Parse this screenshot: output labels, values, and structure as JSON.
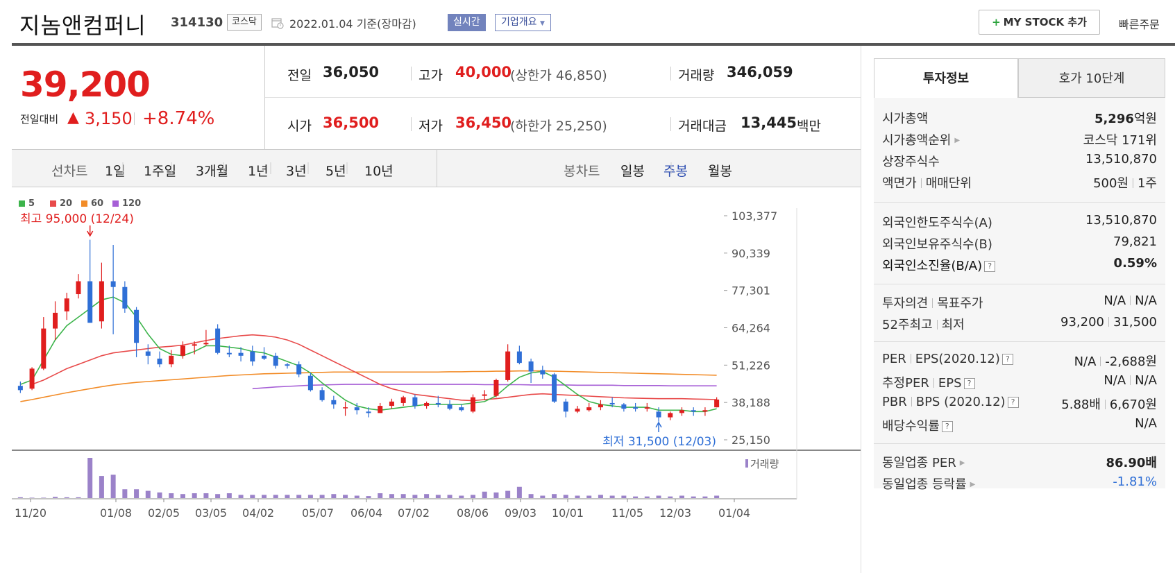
{
  "header": {
    "company_name": "지놈앤컴퍼니",
    "code": "314130",
    "market": "코스닥",
    "date_basis": "2022.01.04 기준(장마감)",
    "realtime_label": "실시간",
    "company_overview_label": "기업개요",
    "mystock_label": "MY STOCK 추가",
    "quick_order_label": "빠른주문"
  },
  "price": {
    "current": "39,200",
    "change_label": "전일대비",
    "change_arrow": "▲",
    "change_value": "3,150",
    "change_pct": "+8.74%"
  },
  "quote": {
    "prev_label": "전일",
    "prev_value": "36,050",
    "high_label": "고가",
    "high_value": "40,000",
    "upper_limit": "(상한가 46,850)",
    "volume_label": "거래량",
    "volume_value": "346,059",
    "open_label": "시가",
    "open_value": "36,500",
    "low_label": "저가",
    "low_value": "36,450",
    "lower_limit": "(하한가 25,250)",
    "amount_label": "거래대금",
    "amount_value": "13,445",
    "amount_unit": "백만"
  },
  "period_bar": {
    "line_label": "선차트",
    "line_periods": [
      "1일",
      "1주일",
      "3개월",
      "1년",
      "3년",
      "5년",
      "10년"
    ],
    "candle_label": "봉차트",
    "candle_periods": [
      "일봉",
      "주봉",
      "월봉"
    ],
    "candle_active": "주봉"
  },
  "chart": {
    "legend": [
      {
        "label": "5",
        "color": "#3cb44b"
      },
      {
        "label": "20",
        "color": "#e84a4a"
      },
      {
        "label": "60",
        "color": "#f28c28"
      },
      {
        "label": "120",
        "color": "#a65fd6"
      }
    ],
    "high_annotation": "최고 95,000 (12/24)",
    "low_annotation": "최저 31,500 (12/03)",
    "y_ticks": [
      "103,377",
      "90,339",
      "77,301",
      "64,264",
      "51,226",
      "38,188",
      "25,150"
    ],
    "x_ticks": [
      "11/20",
      "01/08",
      "02/05",
      "03/05",
      "04/02",
      "05/07",
      "06/04",
      "07/02",
      "08/06",
      "09/03",
      "10/01",
      "11/05",
      "12/03",
      "01/04"
    ],
    "volume_legend": "거래량"
  },
  "chart_data": {
    "type": "candlestick",
    "title": "",
    "ylim": [
      25150,
      103377
    ],
    "candles": [
      [
        44000,
        45500,
        41500,
        42500
      ],
      [
        43000,
        50500,
        42500,
        50000
      ],
      [
        50000,
        68000,
        49500,
        64000
      ],
      [
        64000,
        73500,
        60000,
        69500
      ],
      [
        70000,
        76500,
        67000,
        74500
      ],
      [
        76000,
        83000,
        74500,
        80500
      ],
      [
        80500,
        95000,
        66000,
        66000
      ],
      [
        66500,
        87000,
        64000,
        80500
      ],
      [
        80500,
        93200,
        62000,
        78500
      ],
      [
        78500,
        80500,
        69500,
        71000
      ],
      [
        70500,
        71500,
        54000,
        59000
      ],
      [
        56000,
        58500,
        51500,
        54500
      ],
      [
        53500,
        56000,
        50500,
        51500
      ],
      [
        51500,
        56500,
        50500,
        54500
      ],
      [
        54500,
        59500,
        53500,
        58000
      ],
      [
        58000,
        59500,
        55000,
        58500
      ],
      [
        58500,
        63500,
        58000,
        59000
      ],
      [
        64000,
        65500,
        55000,
        55500
      ],
      [
        55500,
        58000,
        54000,
        55000
      ],
      [
        55500,
        57500,
        52500,
        54500
      ],
      [
        56000,
        58000,
        51000,
        52500
      ],
      [
        54500,
        57500,
        53000,
        53500
      ],
      [
        54500,
        55500,
        50000,
        51000
      ],
      [
        51500,
        52000,
        50000,
        51000
      ],
      [
        51500,
        52500,
        47000,
        48000
      ],
      [
        47500,
        48500,
        42000,
        42500
      ],
      [
        42500,
        43500,
        38500,
        39000
      ],
      [
        39000,
        40500,
        36000,
        37500
      ],
      [
        36500,
        38500,
        33500,
        36500
      ],
      [
        36500,
        38000,
        34000,
        35500
      ],
      [
        35000,
        36500,
        33000,
        34500
      ],
      [
        34500,
        38000,
        34500,
        37000
      ],
      [
        37000,
        39500,
        36000,
        38500
      ],
      [
        38000,
        40500,
        37000,
        40000
      ],
      [
        40000,
        41000,
        36000,
        37000
      ],
      [
        37000,
        38500,
        36000,
        38000
      ],
      [
        38000,
        40500,
        36500,
        37500
      ],
      [
        37500,
        39000,
        35500,
        36000
      ],
      [
        36500,
        37500,
        35000,
        35500
      ],
      [
        35000,
        41000,
        34500,
        40000
      ],
      [
        40500,
        42500,
        39000,
        41000
      ],
      [
        40500,
        46500,
        40000,
        46000
      ],
      [
        46000,
        58500,
        45500,
        56000
      ],
      [
        56000,
        58000,
        51500,
        52000
      ],
      [
        52500,
        53500,
        45000,
        49000
      ],
      [
        49500,
        51000,
        46500,
        48000
      ],
      [
        48000,
        48500,
        38000,
        38500
      ],
      [
        38500,
        39500,
        33000,
        35000
      ],
      [
        35000,
        37000,
        34500,
        36000
      ],
      [
        35500,
        38000,
        35000,
        36500
      ],
      [
        36500,
        39000,
        35500,
        37500
      ],
      [
        38000,
        40000,
        36500,
        37500
      ],
      [
        37500,
        38000,
        35000,
        36000
      ],
      [
        36500,
        38000,
        35000,
        36000
      ],
      [
        36000,
        38000,
        35000,
        36500
      ],
      [
        35000,
        36500,
        31500,
        33000
      ],
      [
        33000,
        35000,
        32000,
        34500
      ],
      [
        34500,
        36500,
        33500,
        35500
      ],
      [
        35500,
        36500,
        33500,
        35000
      ],
      [
        35000,
        36500,
        33500,
        35500
      ],
      [
        36500,
        40000,
        36450,
        39200
      ]
    ],
    "ma5": [
      44500,
      46000,
      53000,
      60000,
      65000,
      68000,
      71000,
      74000,
      75000,
      73000,
      68000,
      62000,
      57000,
      55000,
      54500,
      56000,
      58000,
      58000,
      57500,
      57000,
      56000,
      55500,
      54000,
      52500,
      51000,
      48500,
      45000,
      42000,
      39000,
      37000,
      36000,
      35500,
      36000,
      36500,
      37000,
      37500,
      37500,
      37500,
      37500,
      38000,
      38500,
      40500,
      44000,
      47000,
      48500,
      49000,
      47000,
      44000,
      41000,
      38500,
      37500,
      37000,
      36500,
      36500,
      36500,
      35500,
      35500,
      35500,
      35000,
      35000,
      36000
    ],
    "ma20": [
      null,
      44500,
      46000,
      48000,
      50000,
      51500,
      53000,
      54500,
      55500,
      56000,
      56500,
      57000,
      57500,
      57800,
      58200,
      59000,
      59800,
      60500,
      61000,
      61500,
      61800,
      61500,
      61000,
      60000,
      58500,
      56500,
      54500,
      52500,
      50500,
      48500,
      46500,
      44500,
      43000,
      42000,
      41000,
      40500,
      40000,
      39500,
      39000,
      38800,
      39200,
      39500,
      40000,
      40500,
      41000,
      41200,
      41000,
      40800,
      40600,
      40400,
      40200,
      40000,
      39800,
      39700,
      39600,
      39500,
      39500,
      39500,
      39400,
      39300,
      39200
    ],
    "ma60": [
      38500,
      39200,
      40000,
      40800,
      41600,
      42300,
      43000,
      43700,
      44300,
      44800,
      45200,
      45500,
      45800,
      46100,
      46400,
      46700,
      47000,
      47300,
      47600,
      47800,
      48000,
      48200,
      48300,
      48400,
      48500,
      48600,
      48700,
      48800,
      48800,
      48800,
      48800,
      48800,
      48800,
      48800,
      48800,
      48800,
      48800,
      48900,
      48900,
      49000,
      49000,
      49100,
      49100,
      49200,
      49200,
      49200,
      49100,
      49000,
      48900,
      48800,
      48700,
      48600,
      48500,
      48400,
      48300,
      48200,
      48100,
      48000,
      47900,
      47800,
      47700
    ],
    "ma120": [
      null,
      null,
      null,
      null,
      null,
      null,
      null,
      null,
      null,
      null,
      null,
      null,
      null,
      null,
      null,
      null,
      null,
      null,
      null,
      null,
      43000,
      43300,
      43600,
      43800,
      44000,
      44200,
      44300,
      44400,
      44500,
      44500,
      44500,
      44500,
      44500,
      44500,
      44500,
      44500,
      44500,
      44500,
      44500,
      44500,
      44400,
      44400,
      44400,
      44400,
      44300,
      44300,
      44300,
      44300,
      44200,
      44200,
      44200,
      44200,
      44100,
      44100,
      44100,
      44100,
      44000,
      44000,
      44000,
      44000,
      44000
    ],
    "volume": [
      2,
      1,
      1,
      3,
      2,
      2,
      100,
      55,
      58,
      22,
      22,
      18,
      14,
      12,
      10,
      12,
      12,
      10,
      12,
      8,
      8,
      8,
      8,
      8,
      8,
      8,
      8,
      10,
      8,
      6,
      5,
      12,
      10,
      10,
      8,
      10,
      8,
      8,
      6,
      8,
      16,
      14,
      18,
      28,
      10,
      6,
      10,
      8,
      6,
      6,
      8,
      6,
      6,
      4,
      4,
      6,
      4,
      6,
      4,
      4,
      6
    ]
  },
  "right_panel": {
    "tab_invest": "투자정보",
    "tab_hoga": "호가 10단계",
    "section1": [
      {
        "label": "시가총액",
        "value_num": "5,296",
        "value_unit": "억원"
      },
      {
        "label": "시가총액순위",
        "value": "코스닥 171위"
      },
      {
        "label": "상장주식수",
        "value": "13,510,870"
      },
      {
        "label": "액면가",
        "label2": "매매단위",
        "value": "500원",
        "value2": "1주"
      }
    ],
    "section2": [
      {
        "label": "외국인한도주식수(A)",
        "value": "13,510,870"
      },
      {
        "label": "외국인보유주식수(B)",
        "value": "79,821"
      },
      {
        "label": "외국인소진율(B/A)",
        "value": "0.59%"
      }
    ],
    "section3": [
      {
        "label": "투자의견",
        "label2": "목표주가",
        "value": "N/A",
        "value2": "N/A"
      },
      {
        "label": "52주최고",
        "label2": "최저",
        "value": "93,200",
        "value2": "31,500"
      }
    ],
    "section4": [
      {
        "label": "PER",
        "label2": "EPS(2020.12)",
        "value": "N/A",
        "value2": "-2,688원"
      },
      {
        "label": "추정PER",
        "label2": "EPS",
        "value": "N/A",
        "value2": "N/A"
      },
      {
        "label": "PBR",
        "label2": "BPS (2020.12)",
        "value": "5.88배",
        "value2": "6,670원"
      },
      {
        "label": "배당수익률",
        "value": "N/A"
      }
    ],
    "section5": [
      {
        "label": "동일업종 PER",
        "value": "86.90배"
      },
      {
        "label": "동일업종 등락률",
        "value": "-1.81%"
      }
    ]
  },
  "colors": {
    "up": "#e01e1e",
    "down": "#2f6fd6",
    "accent": "#7283bd"
  }
}
